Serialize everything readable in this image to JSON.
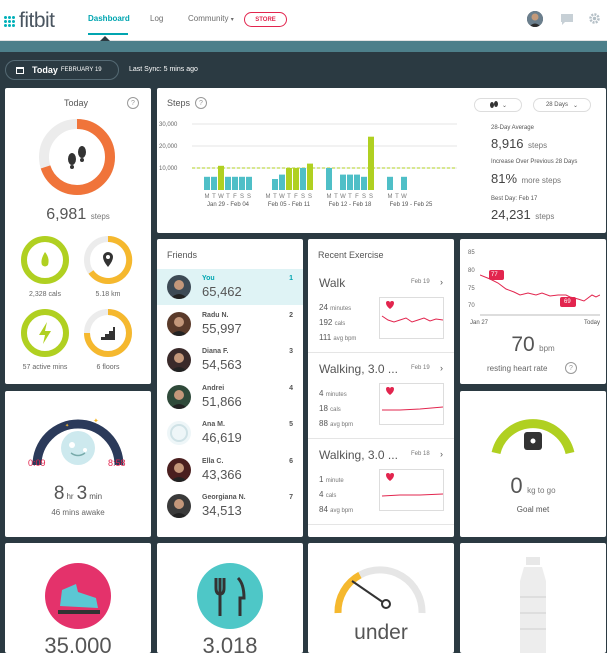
{
  "nav": {
    "logo": "fitbit",
    "links": [
      "Dashboard",
      "Log",
      "Community"
    ],
    "store": "STORE",
    "community_caret": "▾"
  },
  "datebar": {
    "today": "Today",
    "date": "FEBRUARY 19",
    "sync": "Last Sync: 5 mins ago"
  },
  "today": {
    "title": "Today",
    "help": "?",
    "steps": "6,981",
    "steps_unit": "steps",
    "steps_progress": 0.7,
    "cals": "2,328",
    "cals_unit": "cals",
    "km": "5.18",
    "km_unit": "km",
    "active": "57",
    "active_unit": "active mins",
    "floors": "6",
    "floors_unit": "floors"
  },
  "steps_tile": {
    "title": "Steps",
    "help": "?",
    "period": "28 Days",
    "yticks": [
      "30,000",
      "20,000",
      "10,000"
    ],
    "week_labels": [
      "Jan 29 - Feb 04",
      "Feb 05 - Feb 11",
      "Feb 12 - Feb 18",
      "Feb 19 - Feb 25"
    ],
    "day_letters": "MTWTFSS",
    "avg_label": "28-Day Average",
    "avg_value": "8,916",
    "avg_unit": "steps",
    "inc_label": "Increase Over Previous 28 Days",
    "inc_value": "81%",
    "inc_unit": "more steps",
    "best_label": "Best Day: Feb 17",
    "best_value": "24,231",
    "best_unit": "steps"
  },
  "chart_data": {
    "type": "bar",
    "ylim": [
      0,
      30000
    ],
    "goal": 10000,
    "values": [
      6000,
      6000,
      11000,
      6000,
      6000,
      6000,
      6000,
      0,
      5000,
      7000,
      10000,
      10000,
      10000,
      12000,
      10000,
      0,
      7000,
      7000,
      7000,
      6000,
      24231,
      6000,
      0,
      6000
    ],
    "goal_met": [
      false,
      false,
      true,
      false,
      false,
      false,
      false,
      false,
      false,
      false,
      true,
      true,
      false,
      true,
      false,
      false,
      false,
      false,
      false,
      false,
      true,
      false,
      false,
      false
    ]
  },
  "friends": {
    "title": "Friends",
    "list": [
      {
        "name": "You",
        "steps": "65,462",
        "rank": "1"
      },
      {
        "name": "Radu N.",
        "steps": "55,997",
        "rank": "2"
      },
      {
        "name": "Diana F.",
        "steps": "54,563",
        "rank": "3"
      },
      {
        "name": "Andrei",
        "steps": "51,866",
        "rank": "4"
      },
      {
        "name": "Ana M.",
        "steps": "46,619",
        "rank": "5"
      },
      {
        "name": "Ella C.",
        "steps": "43,366",
        "rank": "6"
      },
      {
        "name": "Georgiana N.",
        "steps": "34,513",
        "rank": "7"
      }
    ]
  },
  "exercise": {
    "title": "Recent Exercise",
    "list": [
      {
        "name": "Walk",
        "date": "Feb 19",
        "min": "24",
        "min_unit": "minutes",
        "cals": "192",
        "cals_unit": "cals",
        "bpm": "111",
        "bpm_unit": "avg bpm"
      },
      {
        "name": "Walking, 3.0 ...",
        "date": "Feb 19",
        "min": "4",
        "min_unit": "minutes",
        "cals": "18",
        "cals_unit": "cals",
        "bpm": "88",
        "bpm_unit": "avg bpm"
      },
      {
        "name": "Walking, 3.0 ...",
        "date": "Feb 18",
        "min": "1",
        "min_unit": "minute",
        "cals": "4",
        "cals_unit": "cals",
        "bpm": "84",
        "bpm_unit": "avg bpm"
      }
    ]
  },
  "heart": {
    "yticks": [
      "85",
      "80",
      "75",
      "70"
    ],
    "start_label": "Jan 27",
    "end_label": "Today",
    "high": "77",
    "low": "69",
    "value": "70",
    "unit": "bpm",
    "label": "resting heart rate",
    "help": "?"
  },
  "sleep": {
    "start": "0:09",
    "end": "8:58",
    "hours": "8",
    "hr": "hr",
    "mins": "3",
    "min": "min",
    "awake": "46 mins awake"
  },
  "weight": {
    "value": "0",
    "unit": "kg to go",
    "goal": "Goal met"
  },
  "bottom": {
    "t1": "35,000",
    "t2": "3,018",
    "t3": "under"
  },
  "colors": {
    "teal": "#00b0b9",
    "orange": "#f0743a",
    "green": "#b0d021",
    "yellow": "#f5b82e",
    "red": "#e2254e",
    "navy": "#2b3a42"
  }
}
